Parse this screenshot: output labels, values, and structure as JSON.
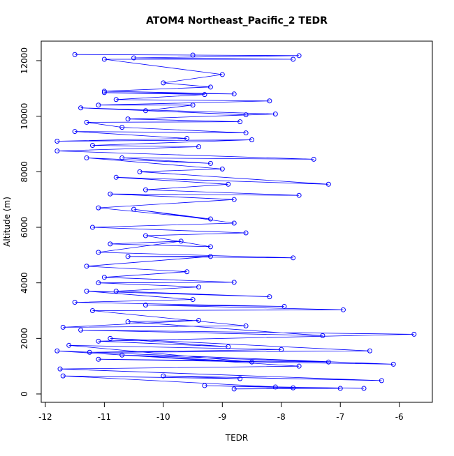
{
  "chart_data": {
    "type": "line",
    "title": "ATOM4 Northeast_Pacific_2 TEDR",
    "x_label": "TEDR",
    "y_label": "Altitude (m)",
    "color": "#0000ff",
    "x": [
      -11.5,
      -9.5,
      -7.7,
      -10.5,
      -7.8,
      -11,
      -9,
      -10,
      -9.2,
      -11,
      -8.8,
      -11,
      -9.3,
      -10.8,
      -8.2,
      -11.1,
      -9.5,
      -10.3,
      -8.6,
      -11.4,
      -8.1,
      -10.6,
      -8.7,
      -11.3,
      -10.7,
      -8.6,
      -11.5,
      -9.6,
      -11.8,
      -8.5,
      -11.2,
      -9.4,
      -11.8,
      -7.45,
      -10.7,
      -9.2,
      -11.3,
      -9.0,
      -10.4,
      -7.2,
      -10.8,
      -8.9,
      -10.3,
      -7.7,
      -10.9,
      -8.8,
      -11.1,
      -9.2,
      -10.5,
      -8.8,
      -11.2,
      -8.6,
      -10.3,
      -9.2,
      -10.9,
      -9.7,
      -11.1,
      -7.8,
      -10.6,
      -9.2,
      -11.3,
      -9.6,
      -11,
      -8.8,
      -11.1,
      -9.4,
      -10.8,
      -8.2,
      -11.3,
      -9.5,
      -11.5,
      -7.95,
      -10.3,
      -6.95,
      -11.2,
      -8.6,
      -11.7,
      -9.4,
      -10.6,
      -7.3,
      -11.4,
      -5.75,
      -11.1,
      -8.9,
      -10.9,
      -6.5,
      -11.25,
      -8.0,
      -11.6,
      -8.5,
      -10.7,
      -7.2,
      -11.1,
      -6.1,
      -11.8,
      -7.7,
      -11.75,
      -6.3,
      -10.0,
      -8.7,
      -11.7,
      -7.8,
      -9.3,
      -6.6,
      -8.1,
      -7.0,
      -8.8
    ],
    "values": [
      12220,
      12200,
      12180,
      12100,
      12050,
      12050,
      11500,
      11200,
      11050,
      10900,
      10800,
      10850,
      10780,
      10600,
      10550,
      10400,
      10400,
      10200,
      10050,
      10300,
      10080,
      9900,
      9800,
      9780,
      9600,
      9400,
      9450,
      9200,
      9100,
      9150,
      8950,
      8900,
      8750,
      8450,
      8500,
      8300,
      8500,
      8100,
      8000,
      7550,
      7800,
      7550,
      7350,
      7150,
      7200,
      7000,
      6700,
      6300,
      6650,
      6150,
      6000,
      5800,
      5700,
      5300,
      5400,
      5500,
      5100,
      4900,
      4950,
      4950,
      4600,
      4400,
      4200,
      4020,
      4000,
      3850,
      3700,
      3500,
      3700,
      3400,
      3300,
      3150,
      3200,
      3030,
      3000,
      2450,
      2400,
      2650,
      2600,
      2100,
      2300,
      2150,
      1900,
      1700,
      2000,
      1550,
      1500,
      1600,
      1750,
      1150,
      1400,
      1150,
      1250,
      1070,
      1550,
      1000,
      900,
      480,
      650,
      550,
      650,
      220,
      300,
      200,
      250,
      200,
      180
    ],
    "xlim": [
      -12.07,
      -5.44
    ],
    "ylim": [
      -301,
      12703
    ],
    "xticks": [
      -12,
      -11,
      -10,
      -9,
      -8,
      -7,
      -6
    ],
    "yticks": [
      0,
      2000,
      4000,
      6000,
      8000,
      10000,
      12000
    ]
  }
}
